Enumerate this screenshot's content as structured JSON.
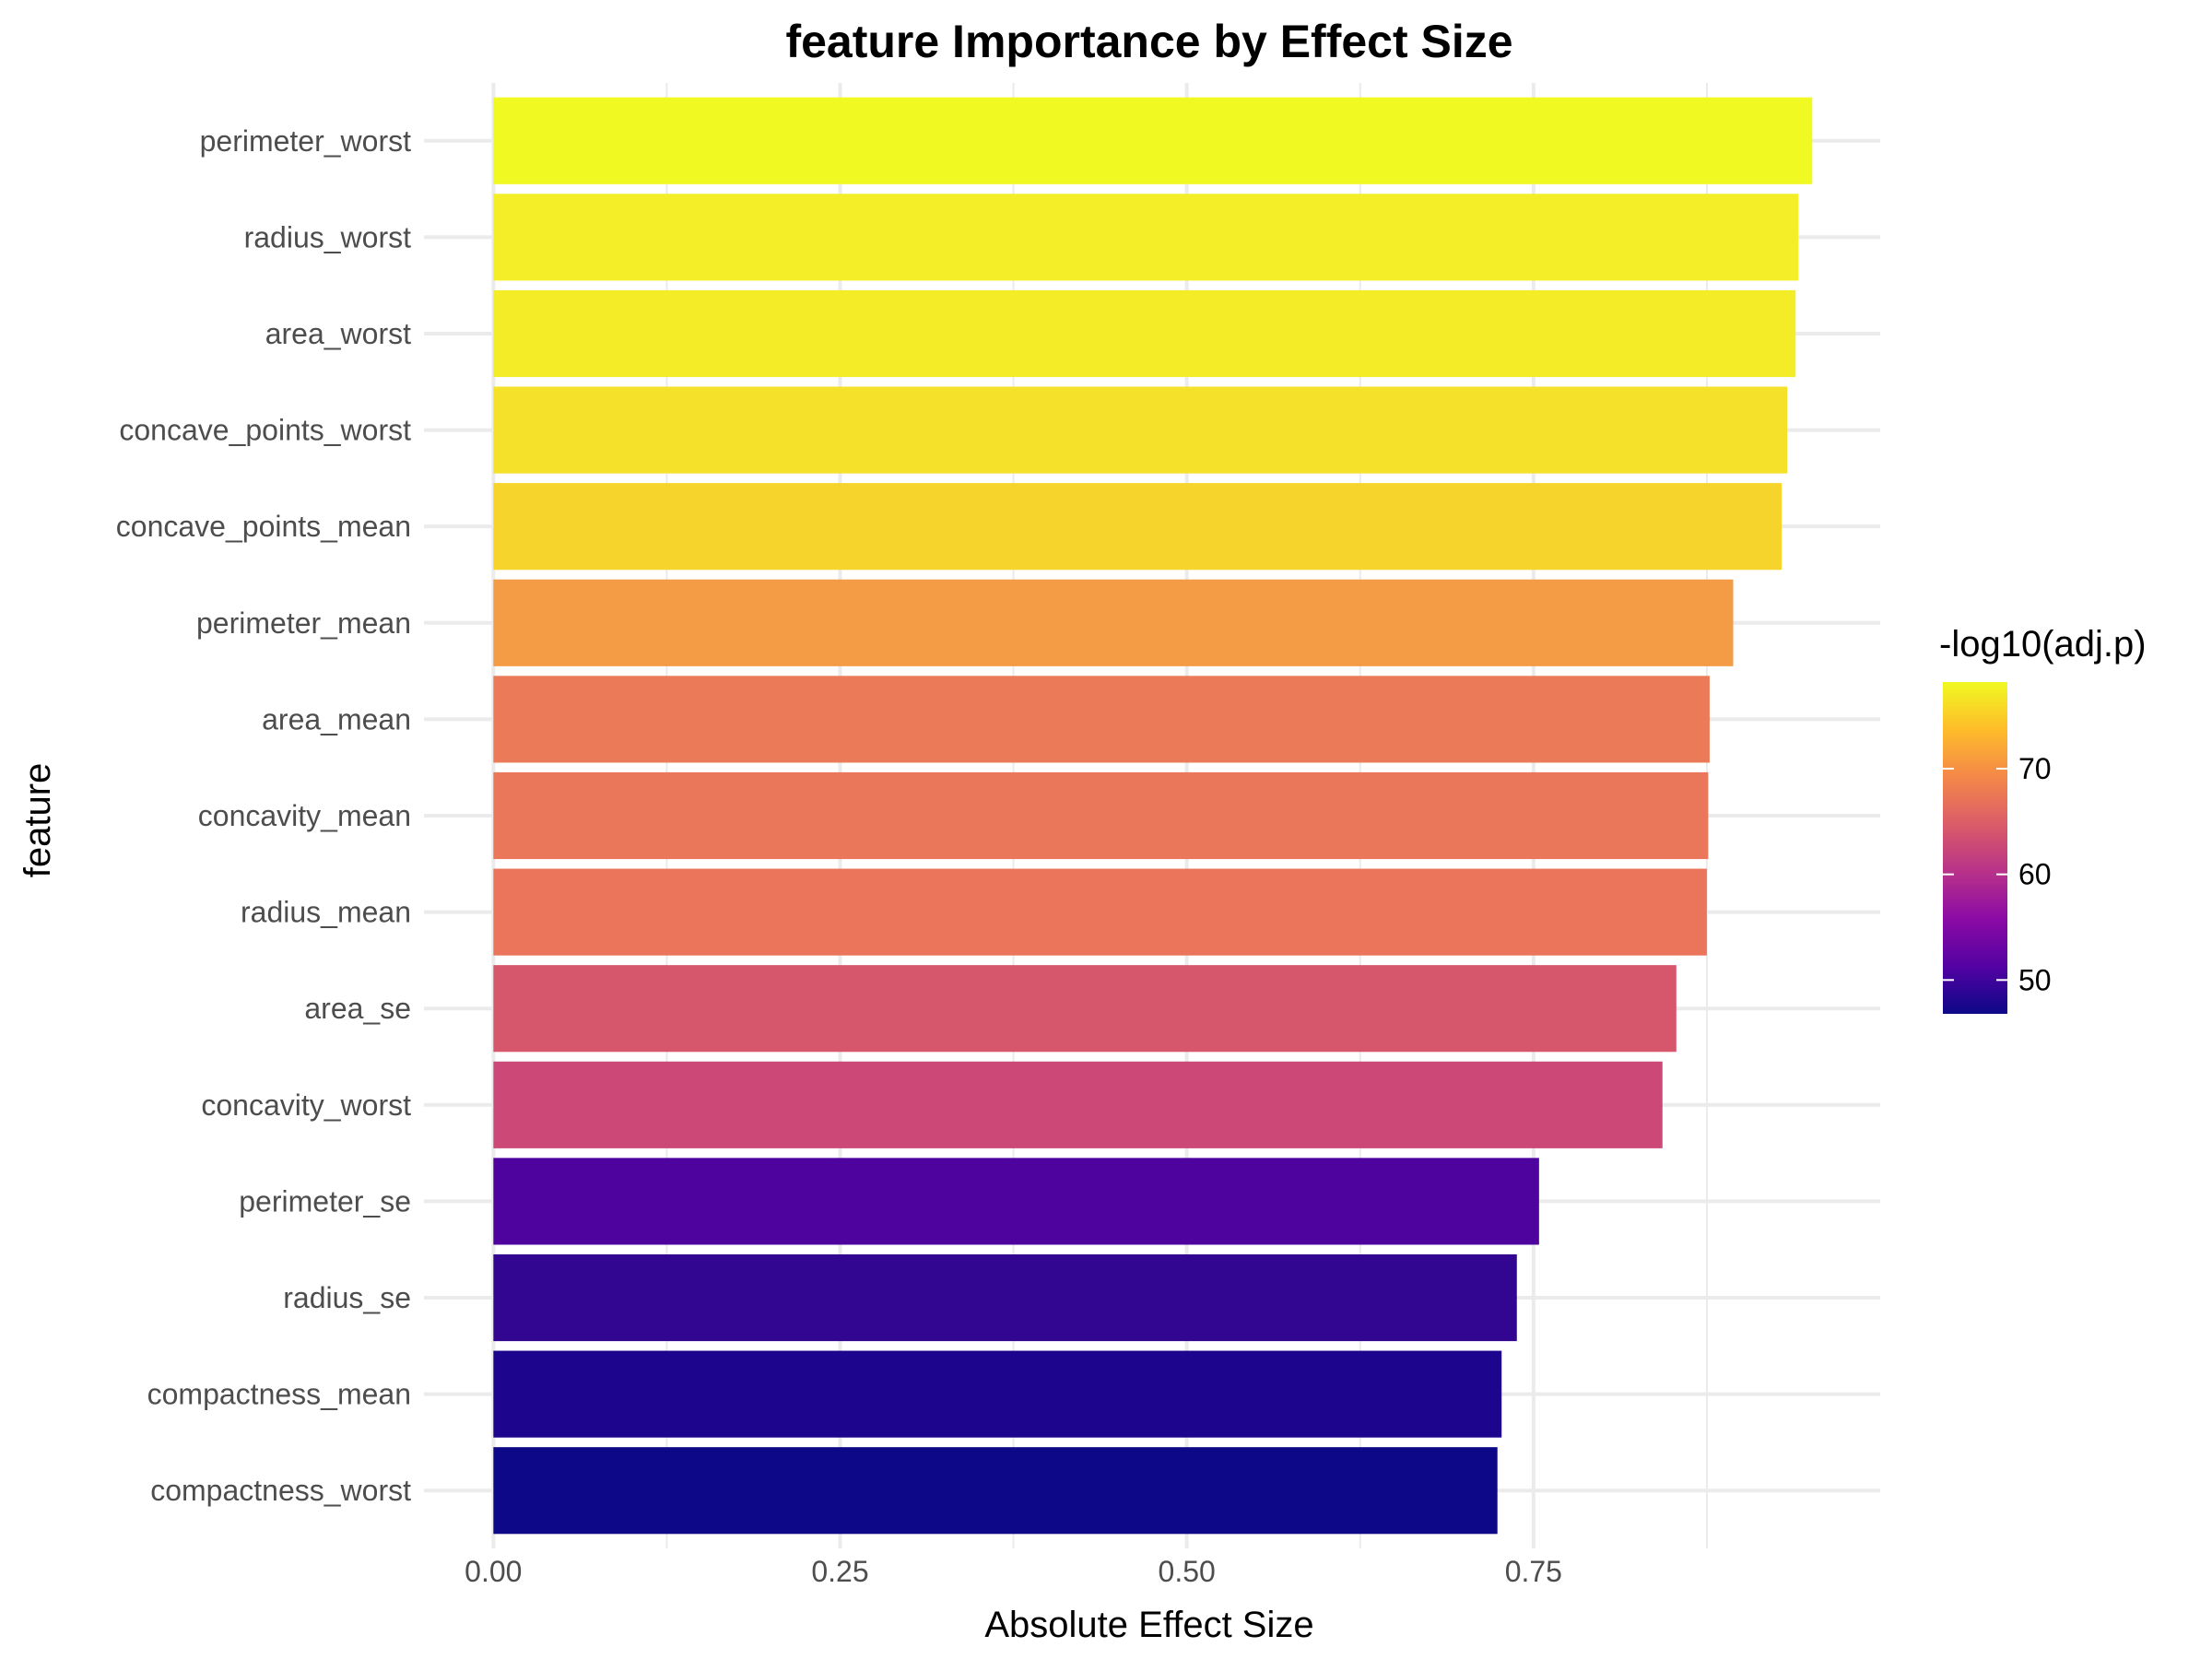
{
  "chart_data": {
    "type": "bar",
    "orientation": "horizontal",
    "title": "feature Importance by Effect Size",
    "xlabel": "Absolute Effect Size",
    "ylabel": "feature",
    "xlim": [
      -0.07,
      1.0
    ],
    "x_ticks": [
      0,
      0.25,
      0.5,
      0.75
    ],
    "x_tick_labels": [
      "0.00",
      "0.25",
      "0.50",
      "0.75"
    ],
    "x_minor_ticks": [
      0.125,
      0.375,
      0.625,
      0.875
    ],
    "grid": true,
    "categories": [
      "perimeter_worst",
      "radius_worst",
      "area_worst",
      "concave_points_worst",
      "concave_points_mean",
      "perimeter_mean",
      "area_mean",
      "concavity_mean",
      "radius_mean",
      "area_se",
      "concavity_worst",
      "perimeter_se",
      "radius_se",
      "compactness_mean",
      "compactness_worst"
    ],
    "values": [
      0.951,
      0.941,
      0.939,
      0.933,
      0.929,
      0.894,
      0.877,
      0.876,
      0.875,
      0.853,
      0.843,
      0.754,
      0.738,
      0.727,
      0.724
    ],
    "fill_values": [
      78.2,
      77.0,
      76.9,
      76.2,
      75.6,
      71.0,
      68.7,
      68.4,
      68.3,
      65.2,
      63.8,
      54.3,
      50.5,
      48.0,
      46.8
    ],
    "fill_colors": [
      "#F0F921",
      "#F3EE27",
      "#F3EC27",
      "#F5E02A",
      "#F7D42B",
      "#F49B46",
      "#EB7A59",
      "#EA7759",
      "#EA755A",
      "#D6566C",
      "#CC4977",
      "#4E029E",
      "#320691",
      "#1D068D",
      "#0D0887"
    ],
    "legend": {
      "title": "-log10(adj.p)",
      "placement": "right",
      "range": [
        46.8,
        78.2
      ],
      "ticks": [
        50,
        60,
        70
      ],
      "tick_labels": [
        "50",
        "60",
        "70"
      ],
      "colormap": "plasma",
      "gradient_stops": [
        "#0D0887",
        "#5302A3",
        "#8B0AA5",
        "#B83289",
        "#DB5C68",
        "#F48849",
        "#FEBC2A",
        "#F0F921"
      ]
    }
  }
}
